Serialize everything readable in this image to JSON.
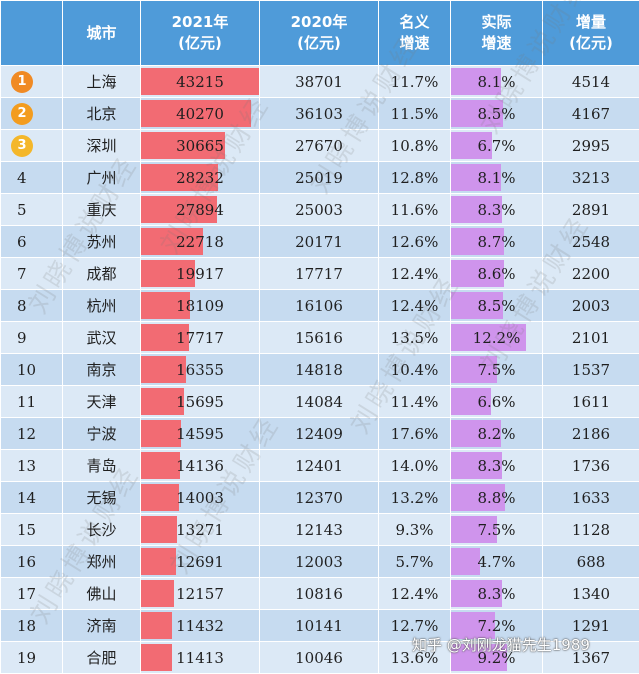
{
  "headers": {
    "city": [
      "城市"
    ],
    "gdp2021": [
      "2021年",
      "(亿元)"
    ],
    "gdp2020": [
      "2020年",
      "(亿元)"
    ],
    "nominal": [
      "名义",
      "增速"
    ],
    "real": [
      "实际",
      "增速"
    ],
    "increase": [
      "增量",
      "(亿元)"
    ]
  },
  "medal_colors": [
    "#f08a24",
    "#f39c1e",
    "#f4b72a"
  ],
  "bar_gdp_max": 43215,
  "bar_real_max": 12.2,
  "rows": [
    {
      "rank": "1",
      "city": "上海",
      "gdp2021": "43215",
      "gdp2020": "38701",
      "nominal": "11.7%",
      "real": "8.1%",
      "increase": "4514"
    },
    {
      "rank": "2",
      "city": "北京",
      "gdp2021": "40270",
      "gdp2020": "36103",
      "nominal": "11.5%",
      "real": "8.5%",
      "increase": "4167"
    },
    {
      "rank": "3",
      "city": "深圳",
      "gdp2021": "30665",
      "gdp2020": "27670",
      "nominal": "10.8%",
      "real": "6.7%",
      "increase": "2995"
    },
    {
      "rank": "4",
      "city": "广州",
      "gdp2021": "28232",
      "gdp2020": "25019",
      "nominal": "12.8%",
      "real": "8.1%",
      "increase": "3213"
    },
    {
      "rank": "5",
      "city": "重庆",
      "gdp2021": "27894",
      "gdp2020": "25003",
      "nominal": "11.6%",
      "real": "8.3%",
      "increase": "2891"
    },
    {
      "rank": "6",
      "city": "苏州",
      "gdp2021": "22718",
      "gdp2020": "20171",
      "nominal": "12.6%",
      "real": "8.7%",
      "increase": "2548"
    },
    {
      "rank": "7",
      "city": "成都",
      "gdp2021": "19917",
      "gdp2020": "17717",
      "nominal": "12.4%",
      "real": "8.6%",
      "increase": "2200"
    },
    {
      "rank": "8",
      "city": "杭州",
      "gdp2021": "18109",
      "gdp2020": "16106",
      "nominal": "12.4%",
      "real": "8.5%",
      "increase": "2003"
    },
    {
      "rank": "9",
      "city": "武汉",
      "gdp2021": "17717",
      "gdp2020": "15616",
      "nominal": "13.5%",
      "real": "12.2%",
      "increase": "2101"
    },
    {
      "rank": "10",
      "city": "南京",
      "gdp2021": "16355",
      "gdp2020": "14818",
      "nominal": "10.4%",
      "real": "7.5%",
      "increase": "1537"
    },
    {
      "rank": "11",
      "city": "天津",
      "gdp2021": "15695",
      "gdp2020": "14084",
      "nominal": "11.4%",
      "real": "6.6%",
      "increase": "1611"
    },
    {
      "rank": "12",
      "city": "宁波",
      "gdp2021": "14595",
      "gdp2020": "12409",
      "nominal": "17.6%",
      "real": "8.2%",
      "increase": "2186"
    },
    {
      "rank": "13",
      "city": "青岛",
      "gdp2021": "14136",
      "gdp2020": "12401",
      "nominal": "14.0%",
      "real": "8.3%",
      "increase": "1736"
    },
    {
      "rank": "14",
      "city": "无锡",
      "gdp2021": "14003",
      "gdp2020": "12370",
      "nominal": "13.2%",
      "real": "8.8%",
      "increase": "1633"
    },
    {
      "rank": "15",
      "city": "长沙",
      "gdp2021": "13271",
      "gdp2020": "12143",
      "nominal": "9.3%",
      "real": "7.5%",
      "increase": "1128"
    },
    {
      "rank": "16",
      "city": "郑州",
      "gdp2021": "12691",
      "gdp2020": "12003",
      "nominal": "5.7%",
      "real": "4.7%",
      "increase": "688"
    },
    {
      "rank": "17",
      "city": "佛山",
      "gdp2021": "12157",
      "gdp2020": "10816",
      "nominal": "12.4%",
      "real": "8.3%",
      "increase": "1340"
    },
    {
      "rank": "18",
      "city": "济南",
      "gdp2021": "11432",
      "gdp2020": "10141",
      "nominal": "12.7%",
      "real": "7.2%",
      "increase": "1291"
    },
    {
      "rank": "19",
      "city": "合肥",
      "gdp2021": "11413",
      "gdp2020": "10046",
      "nominal": "13.6%",
      "real": "9.2%",
      "increase": "1367"
    }
  ],
  "watermark_text": "刘晓博说财经",
  "credit": "知乎 @刘刚龙猫先生1989"
}
